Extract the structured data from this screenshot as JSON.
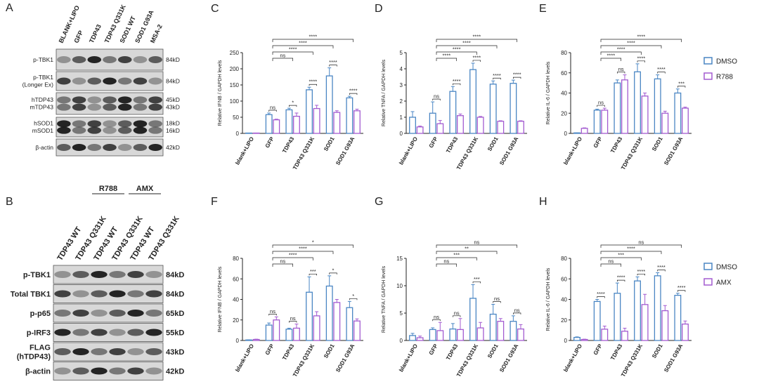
{
  "blots": [
    {
      "panel": "A",
      "lanes": [
        "BLANK+LIPO",
        "GFP",
        "TDP43",
        "TDP43 Q331K",
        "SOD1 WT",
        "SOD1 G93A",
        "MSA-2"
      ],
      "rows": [
        {
          "labels": [
            "p-TBK1"
          ],
          "sizes": [
            "84kD"
          ]
        },
        {
          "labels": [
            "p-TBK1",
            "(Longer Ex)"
          ],
          "sizes": [
            "84kD"
          ]
        },
        {
          "labels": [
            "hTDP43",
            "mTDP43"
          ],
          "sizes": [
            "45kD",
            "43kD"
          ]
        },
        {
          "labels": [
            "hSOD1",
            "mSOD1"
          ],
          "sizes": [
            "18kD",
            "16kD"
          ]
        },
        {
          "labels": [
            "β-actin"
          ],
          "sizes": [
            "42kD"
          ]
        }
      ]
    },
    {
      "panel": "B",
      "groups": [
        "R788",
        "AMX"
      ],
      "lanes": [
        "TDP43 WT",
        "TDP43 Q331K",
        "TDP43 WT",
        "TDP43 Q331K",
        "TDP43 WT",
        "TDP43 Q331K"
      ],
      "rows": [
        {
          "labels": [
            "p-TBK1"
          ],
          "sizes": [
            "84kD"
          ]
        },
        {
          "labels": [
            "Total TBK1"
          ],
          "sizes": [
            "84kD"
          ]
        },
        {
          "labels": [
            "p-p65"
          ],
          "sizes": [
            "65kD"
          ]
        },
        {
          "labels": [
            "p-IRF3"
          ],
          "sizes": [
            "55kD"
          ]
        },
        {
          "labels": [
            "FLAG",
            "(hTDP43)"
          ],
          "sizes": [
            "43kD"
          ]
        },
        {
          "labels": [
            "β-actin"
          ],
          "sizes": [
            "42kD"
          ]
        }
      ]
    }
  ],
  "chart_data": [
    {
      "type": "bar",
      "panel": "C",
      "y_label": "Relative IFNB / GAPDH levels",
      "categories": [
        "blank+LIPO",
        "GFP",
        "TDP43",
        "TDP43 Q331K",
        "SOD1",
        "SOD1 G93A"
      ],
      "series": [
        {
          "name": "DMSO",
          "color": "#4a86c4",
          "values": [
            1,
            58,
            73,
            135,
            178,
            110
          ],
          "errors": [
            0,
            5,
            5,
            8,
            25,
            5
          ]
        },
        {
          "name": "R788",
          "color": "#a35bd0",
          "values": [
            1,
            42,
            53,
            77,
            65,
            70
          ],
          "errors": [
            0,
            2,
            10,
            10,
            5,
            5
          ]
        }
      ],
      "ylim": [
        0,
        250
      ],
      "yticks": [
        0,
        50,
        100,
        150,
        200,
        250
      ],
      "pair_labels": [
        null,
        "ns",
        "*",
        "****",
        "****",
        "****"
      ],
      "comparison_labels": [
        null,
        null,
        "ns",
        "****",
        "****",
        "****"
      ],
      "legend": false
    },
    {
      "type": "bar",
      "panel": "D",
      "y_label": "Relative TNFA / GAPDH levels",
      "categories": [
        "blank+LIPO",
        "GFP",
        "TDP43",
        "TDP43 Q331K",
        "SOD1",
        "SOD1 G93A"
      ],
      "series": [
        {
          "name": "DMSO",
          "color": "#4a86c4",
          "values": [
            1.0,
            1.25,
            2.6,
            3.95,
            3.05,
            3.1
          ],
          "errors": [
            0.35,
            0.7,
            0.3,
            0.4,
            0.2,
            0.2
          ]
        },
        {
          "name": "R788",
          "color": "#a35bd0",
          "values": [
            0.4,
            0.6,
            1.1,
            1.0,
            0.75,
            0.75
          ],
          "errors": [
            0.05,
            0.2,
            0.1,
            0.05,
            0.03,
            0.03
          ]
        }
      ],
      "ylim": [
        0,
        5
      ],
      "yticks": [
        0,
        1,
        2,
        3,
        4,
        5
      ],
      "pair_labels": [
        null,
        "ns",
        "****",
        "****",
        "****",
        "****"
      ],
      "comparison_labels": [
        null,
        null,
        "****",
        "****",
        "****",
        "****"
      ],
      "legend": false
    },
    {
      "type": "bar",
      "panel": "E",
      "y_label": "Relative IL-6 / GAPDH levels",
      "categories": [
        "blank+LIPO",
        "GFP",
        "TDP43",
        "TDP43 Q331K",
        "SOD1",
        "SOD1 G93A"
      ],
      "series": [
        {
          "name": "DMSO",
          "color": "#4a86c4",
          "values": [
            0.5,
            23,
            50,
            61,
            54,
            40
          ],
          "errors": [
            0,
            1,
            3,
            8,
            4,
            4
          ]
        },
        {
          "name": "R788",
          "color": "#a35bd0",
          "values": [
            5,
            23,
            53,
            37,
            20,
            25
          ],
          "errors": [
            0.5,
            2,
            5,
            3,
            2,
            1
          ]
        }
      ],
      "ylim": [
        0,
        80
      ],
      "yticks": [
        0,
        20,
        40,
        60,
        80
      ],
      "pair_labels": [
        null,
        "ns",
        "ns",
        "****",
        "****",
        "***"
      ],
      "comparison_labels": [
        null,
        null,
        "****",
        "****",
        "****",
        "****"
      ],
      "legend": true
    },
    {
      "type": "bar",
      "panel": "F",
      "y_label": "Relative IFNB / GAPDH levels",
      "categories": [
        "blank+LIPO",
        "GFP",
        "TDP43",
        "TDP43 Q331K",
        "SOD1",
        "SOD1 G93A"
      ],
      "series": [
        {
          "name": "DMSO",
          "color": "#4a86c4",
          "values": [
            0.5,
            15,
            11,
            47,
            53,
            32
          ],
          "errors": [
            0.2,
            2,
            1,
            15,
            10,
            6
          ]
        },
        {
          "name": "AMX",
          "color": "#a35bd0",
          "values": [
            1,
            20,
            12,
            24,
            37,
            19
          ],
          "errors": [
            0.3,
            3,
            4,
            4,
            3,
            2
          ]
        }
      ],
      "ylim": [
        0,
        80
      ],
      "yticks": [
        0,
        20,
        40,
        60,
        80
      ],
      "pair_labels": [
        null,
        "ns",
        "ns",
        "***",
        "*",
        "*"
      ],
      "comparison_labels": [
        null,
        null,
        "ns",
        "****",
        "****",
        "*"
      ],
      "legend": false
    },
    {
      "type": "bar",
      "panel": "G",
      "y_label": "Relative TNFA / GAPDH levels",
      "categories": [
        "blank+LIPO",
        "GFP",
        "TDP43",
        "TDP43 Q331K",
        "SOD1",
        "SOD1 G93A"
      ],
      "series": [
        {
          "name": "DMSO",
          "color": "#4a86c4",
          "values": [
            0.9,
            2.0,
            2.1,
            7.7,
            4.8,
            3.5
          ],
          "errors": [
            0.4,
            0.3,
            1,
            2.5,
            1.8,
            1
          ]
        },
        {
          "name": "AMX",
          "color": "#a35bd0",
          "values": [
            0.5,
            1.8,
            2.0,
            2.3,
            3.5,
            2.1
          ],
          "errors": [
            0.3,
            1.5,
            2,
            1,
            0.5,
            0.8
          ]
        }
      ],
      "ylim": [
        0,
        15
      ],
      "yticks": [
        0,
        5,
        10,
        15
      ],
      "pair_labels": [
        null,
        "ns",
        "ns",
        "***",
        "ns",
        "ns"
      ],
      "comparison_labels": [
        null,
        null,
        "ns",
        "***",
        "**",
        "ns"
      ],
      "legend": false
    },
    {
      "type": "bar",
      "panel": "H",
      "y_label": "Relative IL-6 / GAPDH levels",
      "categories": [
        "blank+LIPO",
        "GFP",
        "TDP43",
        "TDP43 Q331K",
        "SOD1",
        "SOD1 G93A"
      ],
      "series": [
        {
          "name": "DMSO",
          "color": "#4a86c4",
          "values": [
            3,
            38,
            46,
            58,
            63,
            44
          ],
          "errors": [
            0.5,
            2,
            10,
            4,
            3,
            2
          ]
        },
        {
          "name": "AMX",
          "color": "#a35bd0",
          "values": [
            1,
            11,
            9,
            35,
            29,
            16
          ],
          "errors": [
            0.3,
            3,
            3,
            10,
            5,
            3
          ]
        }
      ],
      "ylim": [
        0,
        80
      ],
      "yticks": [
        0,
        20,
        40,
        60,
        80
      ],
      "pair_labels": [
        null,
        "****",
        "****",
        "****",
        "****",
        "****"
      ],
      "comparison_labels": [
        null,
        null,
        "ns",
        "***",
        "****",
        "ns"
      ],
      "legend": true
    }
  ]
}
